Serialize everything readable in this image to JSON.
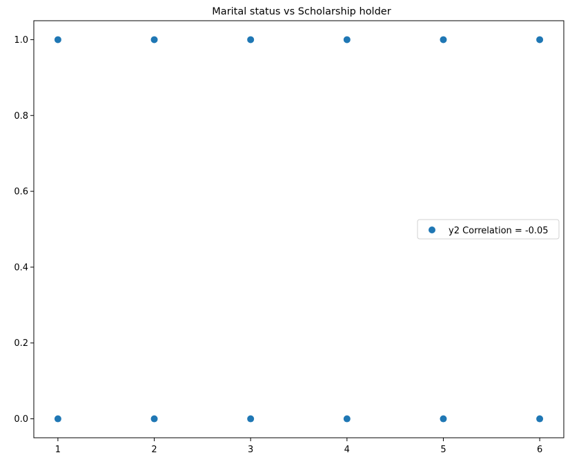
{
  "chart_data": {
    "type": "scatter",
    "title": "Marital status vs Scholarship holder",
    "xlabel": "",
    "ylabel": "",
    "xlim": [
      0.75,
      6.25
    ],
    "ylim": [
      -0.05,
      1.05
    ],
    "xticks": [
      1,
      2,
      3,
      4,
      5,
      6
    ],
    "xtick_labels": [
      "1",
      "2",
      "3",
      "4",
      "5",
      "6"
    ],
    "yticks": [
      0.0,
      0.2,
      0.4,
      0.6,
      0.8,
      1.0
    ],
    "ytick_labels": [
      "0.0",
      "0.2",
      "0.4",
      "0.6",
      "0.8",
      "1.0"
    ],
    "grid": false,
    "legend_position": "center-right",
    "series": [
      {
        "name": "y2 Correlation = -0.05",
        "color": "#1f77b4",
        "points": [
          {
            "x": 1,
            "y": 1
          },
          {
            "x": 2,
            "y": 1
          },
          {
            "x": 3,
            "y": 1
          },
          {
            "x": 4,
            "y": 1
          },
          {
            "x": 5,
            "y": 1
          },
          {
            "x": 6,
            "y": 1
          },
          {
            "x": 1,
            "y": 0
          },
          {
            "x": 2,
            "y": 0
          },
          {
            "x": 3,
            "y": 0
          },
          {
            "x": 4,
            "y": 0
          },
          {
            "x": 5,
            "y": 0
          },
          {
            "x": 6,
            "y": 0
          }
        ]
      }
    ]
  }
}
